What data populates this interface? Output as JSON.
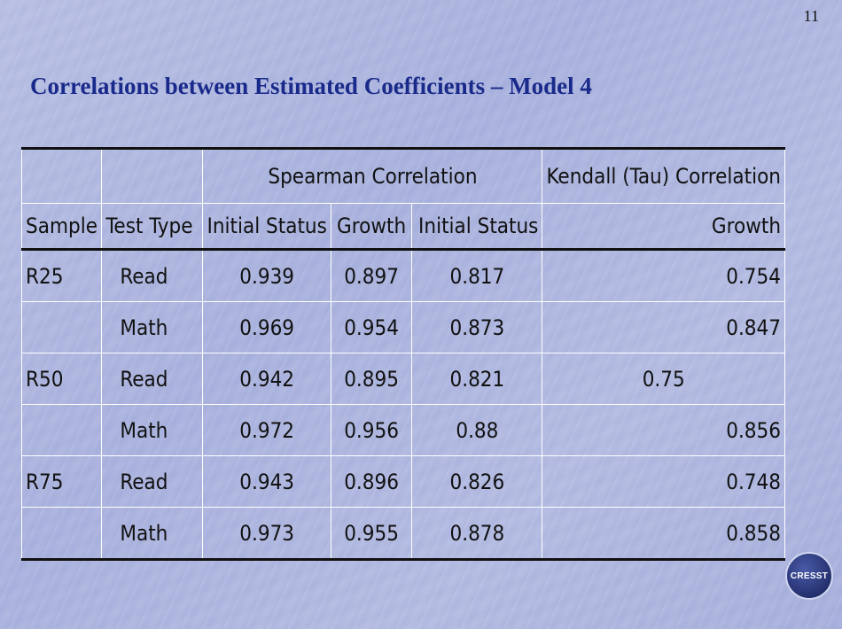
{
  "slide": {
    "page_number": "11",
    "title": "Correlations between Estimated Coefficients – Model 4",
    "logo_text": "CRESST"
  },
  "table": {
    "group_headers": [
      "Spearman Correlation",
      "Kendall (Tau) Correlation"
    ],
    "columns": [
      "Sample",
      "Test Type",
      "Initial Status",
      "Growth",
      "Initial Status",
      "Growth"
    ],
    "rows": [
      {
        "sample": "R25",
        "test_type": "Read",
        "spearman_initial": "0.939",
        "spearman_growth": "0.897",
        "kendall_initial": "0.817",
        "kendall_growth": "0.754"
      },
      {
        "sample": "",
        "test_type": "Math",
        "spearman_initial": "0.969",
        "spearman_growth": "0.954",
        "kendall_initial": "0.873",
        "kendall_growth": "0.847"
      },
      {
        "sample": "R50",
        "test_type": "Read",
        "spearman_initial": "0.942",
        "spearman_growth": "0.895",
        "kendall_initial": "0.821",
        "kendall_growth": "0.75"
      },
      {
        "sample": "",
        "test_type": "Math",
        "spearman_initial": "0.972",
        "spearman_growth": "0.956",
        "kendall_initial": "0.88",
        "kendall_growth": "0.856"
      },
      {
        "sample": "R75",
        "test_type": "Read",
        "spearman_initial": "0.943",
        "spearman_growth": "0.896",
        "kendall_initial": "0.826",
        "kendall_growth": "0.748"
      },
      {
        "sample": "",
        "test_type": "Math",
        "spearman_initial": "0.973",
        "spearman_growth": "0.955",
        "kendall_initial": "0.878",
        "kendall_growth": "0.858"
      }
    ]
  }
}
